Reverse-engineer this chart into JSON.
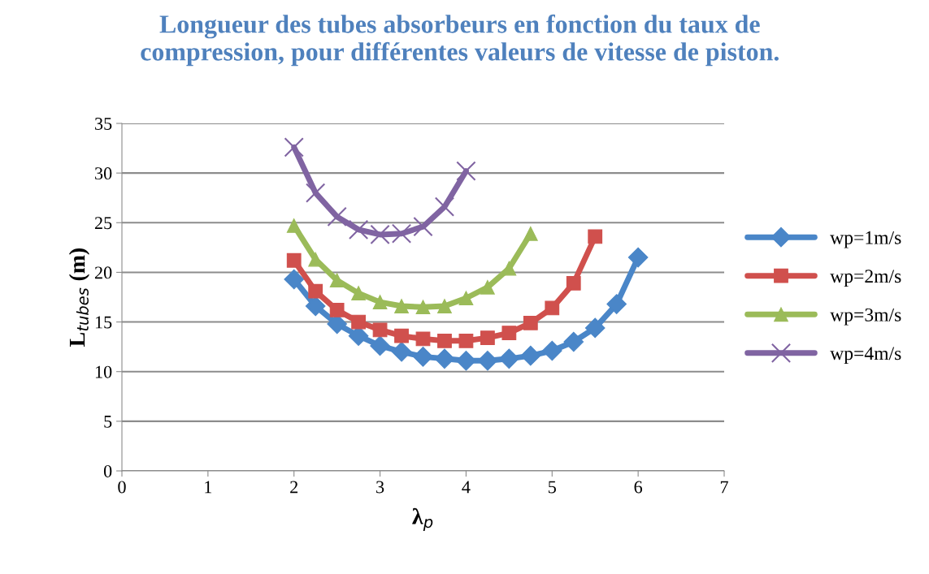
{
  "chart_data": {
    "type": "line",
    "title": "Longueur des tubes absorbeurs en fonction du taux de\ncompression, pour différentes valeurs de vitesse de piston.",
    "xlabel": "λ$_{p}$",
    "ylabel": "L$_{tubes}$ (m)",
    "xlim": [
      0,
      7
    ],
    "xticks": [
      0,
      1,
      2,
      3,
      4,
      5,
      6,
      7
    ],
    "ylim": [
      0,
      35
    ],
    "yticks": [
      0,
      5,
      10,
      15,
      20,
      25,
      30,
      35
    ],
    "grid": "y",
    "legend": "right",
    "series": [
      {
        "name": "wp=1m/s",
        "color": "#4a86c8",
        "marker": "diamond",
        "x": [
          2,
          2.25,
          2.5,
          2.75,
          3,
          3.25,
          3.5,
          3.75,
          4,
          4.25,
          4.5,
          4.75,
          5,
          5.25,
          5.5,
          5.75,
          6
        ],
        "values": [
          19.3,
          16.6,
          14.8,
          13.6,
          12.6,
          12.0,
          11.5,
          11.3,
          11.1,
          11.1,
          11.3,
          11.6,
          12.1,
          13.0,
          14.4,
          16.8,
          21.5
        ]
      },
      {
        "name": "wp=2m/s",
        "color": "#d0504d",
        "marker": "square",
        "x": [
          2,
          2.25,
          2.5,
          2.75,
          3,
          3.25,
          3.5,
          3.75,
          4,
          4.25,
          4.5,
          4.75,
          5,
          5.25,
          5.5
        ],
        "values": [
          21.2,
          18.1,
          16.2,
          15.0,
          14.2,
          13.6,
          13.3,
          13.1,
          13.1,
          13.4,
          13.9,
          14.9,
          16.4,
          18.9,
          23.6
        ]
      },
      {
        "name": "wp=3m/s",
        "color": "#9bbb59",
        "marker": "triangle",
        "x": [
          2,
          2.25,
          2.5,
          2.75,
          3,
          3.25,
          3.5,
          3.75,
          4,
          4.25,
          4.5,
          4.75
        ],
        "values": [
          24.7,
          21.3,
          19.2,
          17.9,
          17.0,
          16.6,
          16.5,
          16.6,
          17.4,
          18.5,
          20.4,
          23.9
        ]
      },
      {
        "name": "wp=4m/s",
        "color": "#8064a2",
        "marker": "cross",
        "x": [
          2,
          2.25,
          2.5,
          2.75,
          3,
          3.25,
          3.5,
          3.75,
          4
        ],
        "values": [
          32.6,
          28.0,
          25.6,
          24.3,
          23.8,
          23.9,
          24.6,
          26.6,
          30.2
        ]
      }
    ]
  }
}
